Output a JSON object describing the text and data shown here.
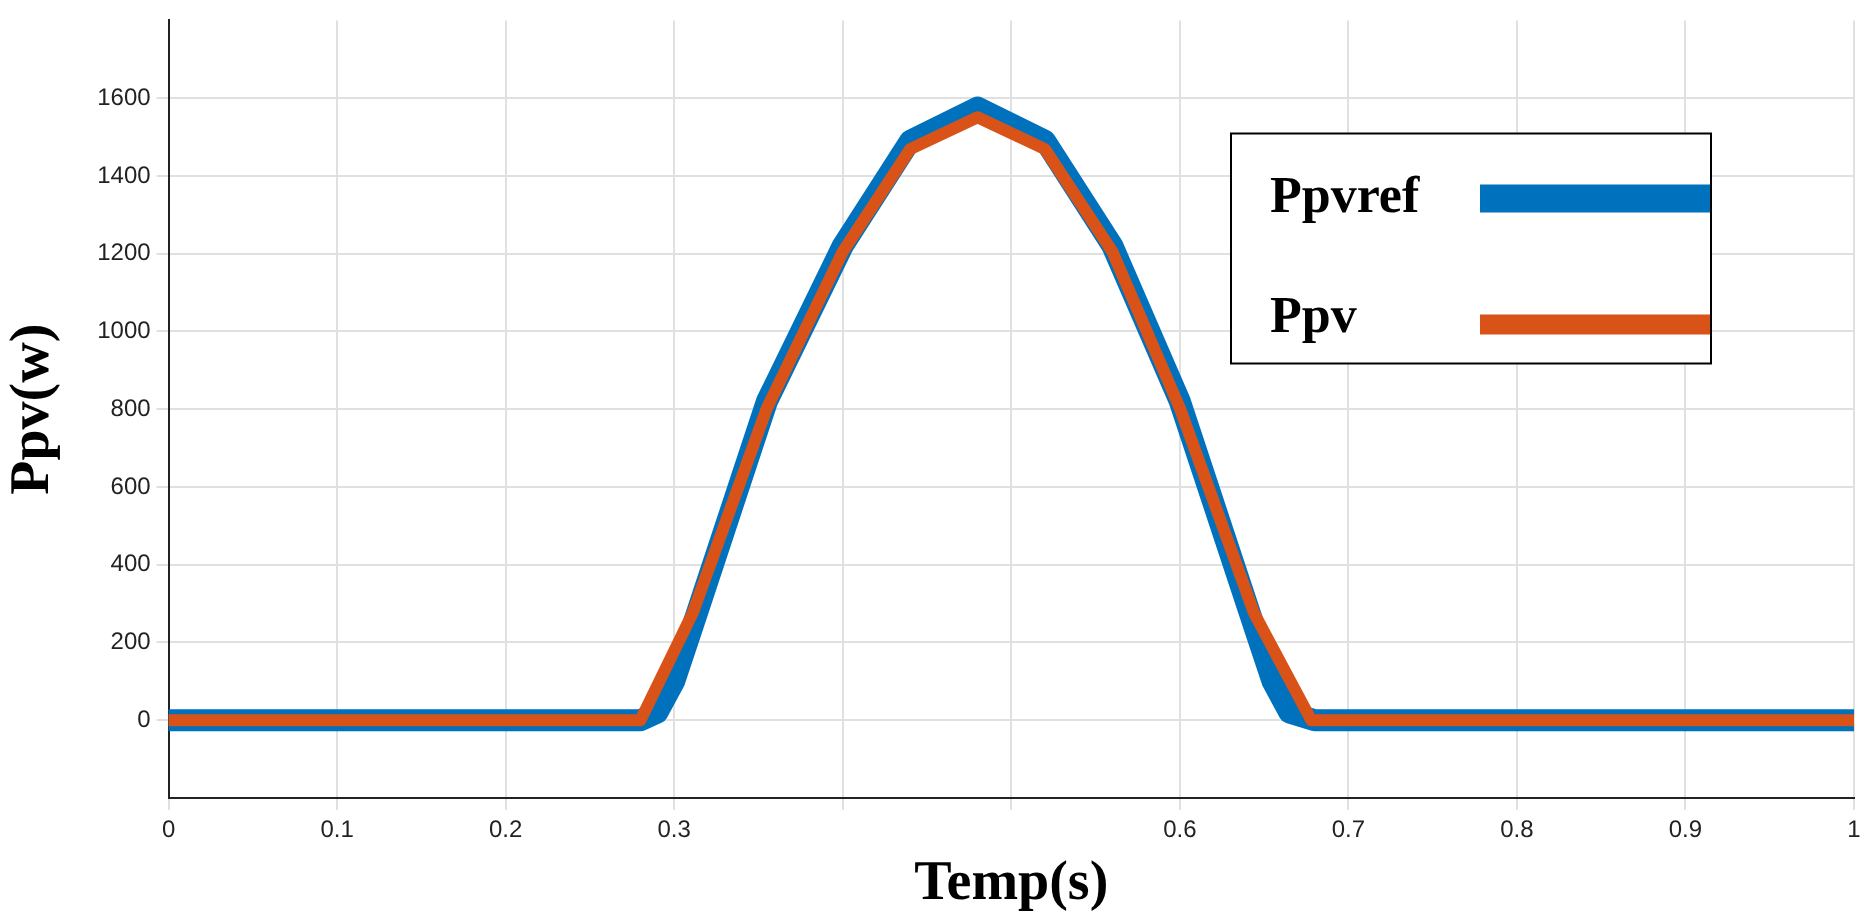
{
  "chart_data": {
    "type": "line",
    "xlabel": "Temp(s)",
    "ylabel": "Ppv(w)",
    "xlim": [
      0,
      1
    ],
    "xticks": [
      0,
      0.1,
      0.2,
      0.3,
      {
        "value": 0.4,
        "label": null
      },
      {
        "value": 0.5,
        "label": null
      },
      0.6,
      0.7,
      0.8,
      0.9,
      1
    ],
    "ylim": [
      -200,
      1800
    ],
    "yticks": [
      0,
      200,
      400,
      600,
      800,
      1000,
      1200,
      1400,
      1600
    ],
    "grid": true,
    "legend": "top right",
    "marker": "none",
    "line_style": "solid",
    "series": [
      {
        "name": "Ppvref",
        "color": "#0072bd",
        "x": [
          0,
          0.28,
          0.29,
          0.3,
          0.31,
          0.355,
          0.4,
          0.44,
          0.48,
          0.52,
          0.56,
          0.6,
          0.645,
          0.655,
          0.665,
          0.68,
          1
        ],
        "values": [
          0,
          0,
          20,
          100,
          230,
          820,
          1220,
          1490,
          1576,
          1490,
          1220,
          820,
          230,
          100,
          20,
          0,
          0
        ]
      },
      {
        "name": "Ppv",
        "color": "#d95319",
        "x": [
          0,
          0.28,
          0.311,
          0.355,
          0.4,
          0.44,
          0.48,
          0.52,
          0.56,
          0.6,
          0.644,
          0.678,
          1
        ],
        "values": [
          0,
          0,
          276,
          803,
          1205,
          1469,
          1551,
          1469,
          1205,
          803,
          276,
          0,
          0
        ]
      }
    ]
  }
}
